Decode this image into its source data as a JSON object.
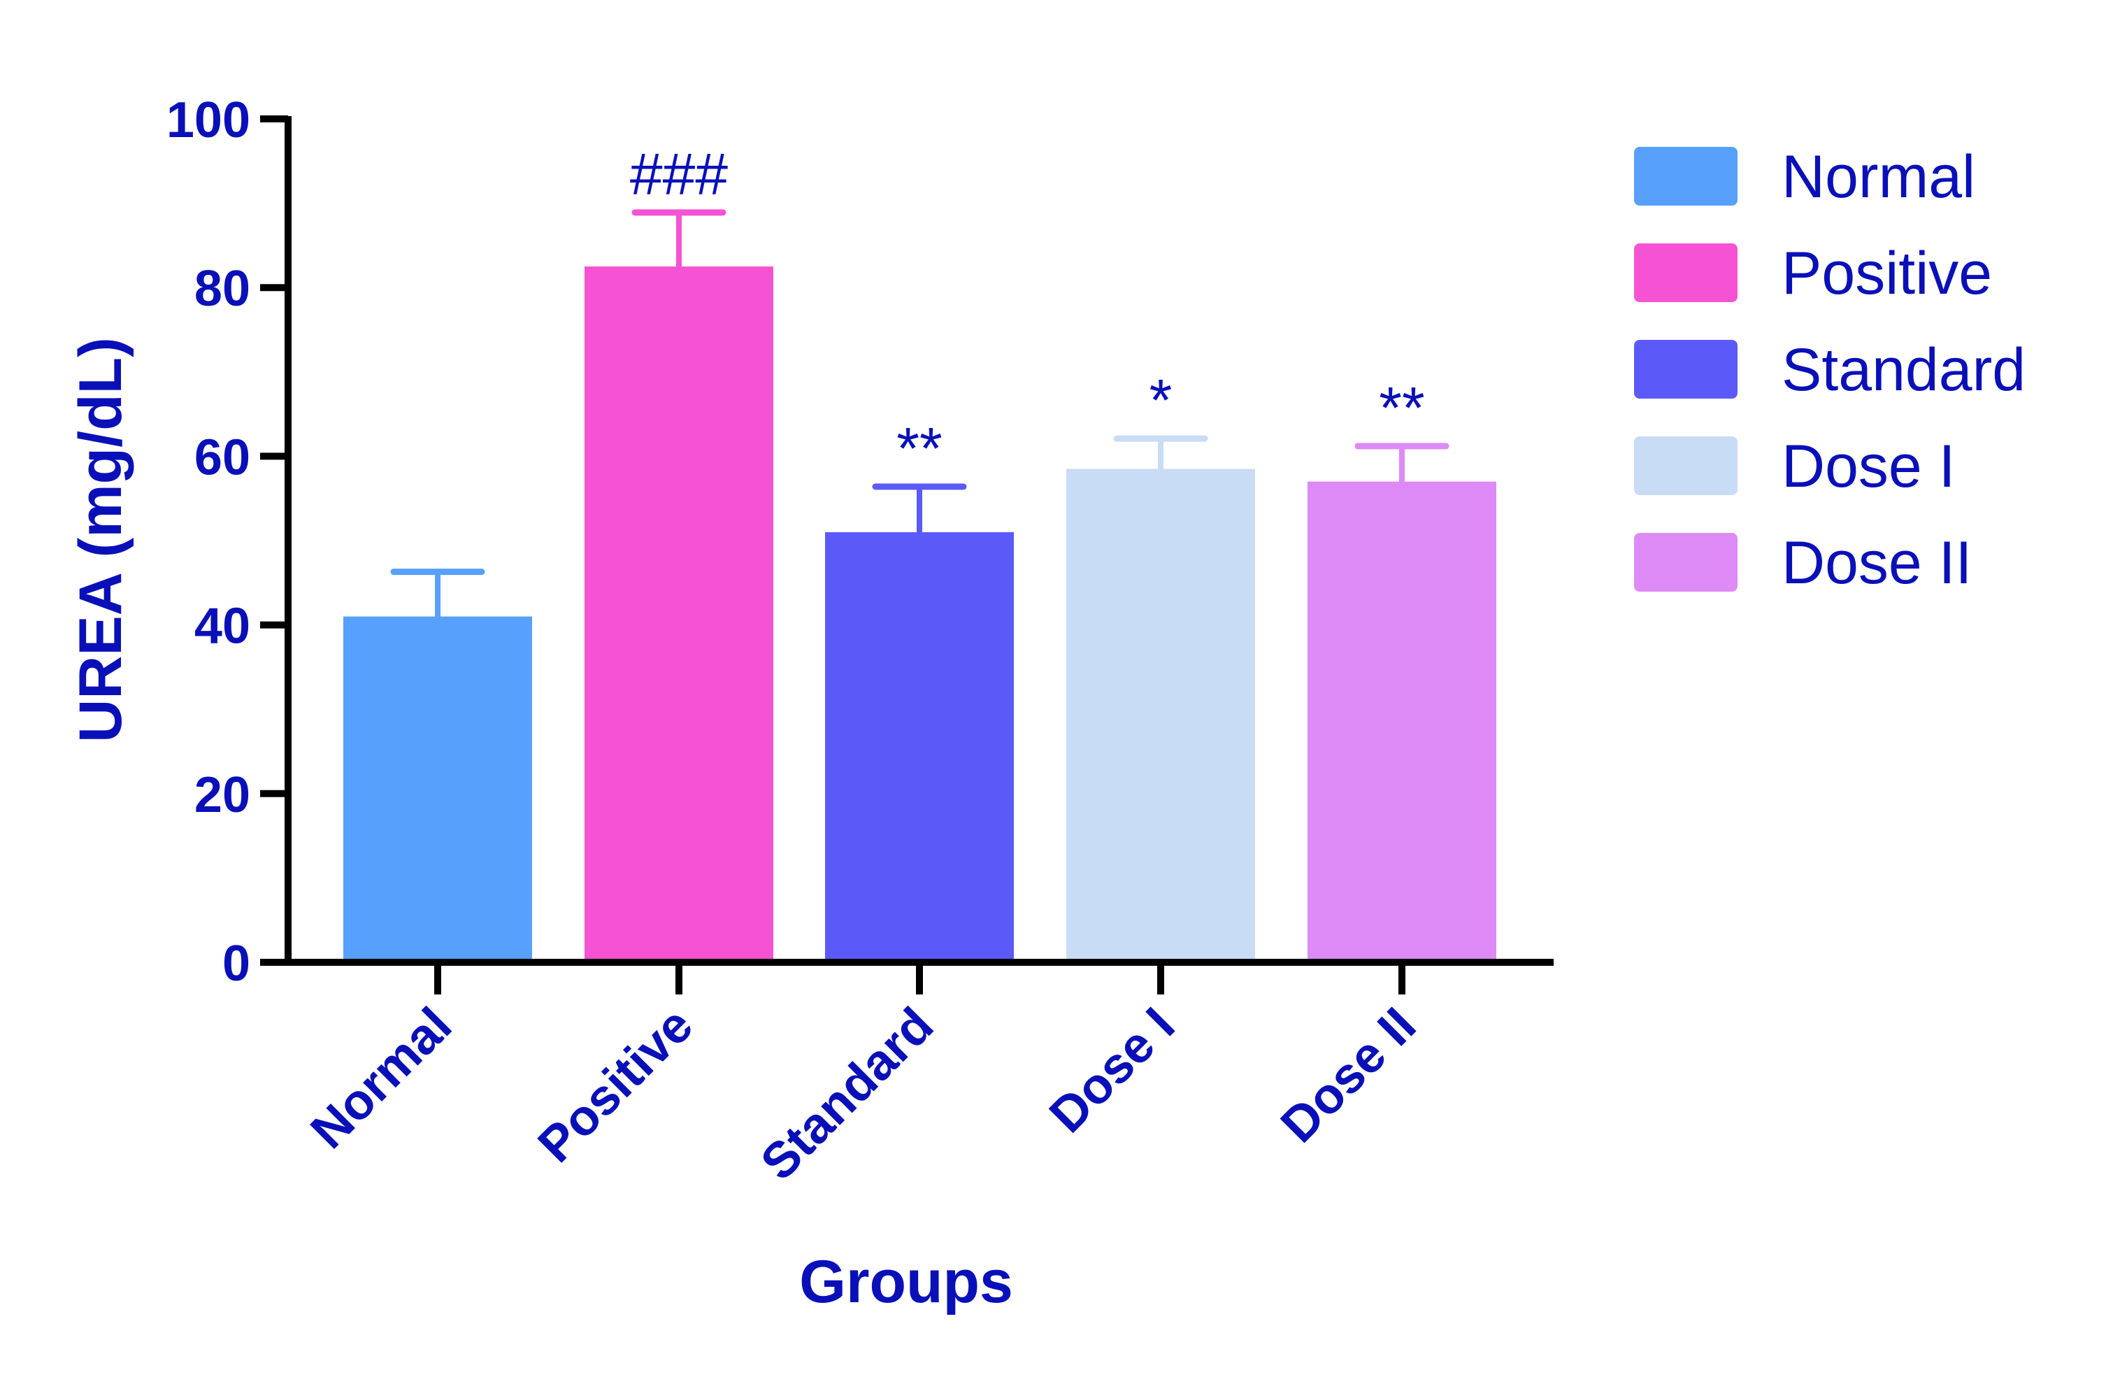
{
  "chart_data": {
    "type": "bar",
    "title": "",
    "xlabel": "Groups",
    "ylabel": "UREA (mg/dL)",
    "ylim": [
      0,
      100
    ],
    "yticks": [
      "0",
      "20",
      "40",
      "60",
      "80",
      "100"
    ],
    "grid": false,
    "legend_placement": "right",
    "categories": [
      "Normal",
      "Positive",
      "Standard",
      "Dose I",
      "Dose II"
    ],
    "values": [
      41,
      82.5,
      51,
      58.5,
      57
    ],
    "errors": [
      5.3,
      6.4,
      5.4,
      3.6,
      4.2
    ],
    "annotations": [
      "",
      "###",
      "**",
      "*",
      "**"
    ],
    "colors": [
      "#57a0fb",
      "#f553d4",
      "#5b5af9",
      "#c9dcf6",
      "#dd8af6"
    ],
    "text_color": "#0a10b8"
  }
}
